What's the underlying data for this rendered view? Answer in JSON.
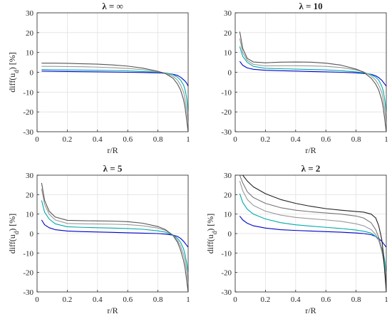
{
  "chart_data": [
    {
      "type": "line",
      "title": "λ = ∞",
      "xlabel": "r/R",
      "ylabel": "diff(u_d) [%]",
      "xlim": [
        0,
        1
      ],
      "ylim": [
        -30,
        30
      ],
      "xticks": [
        "0",
        "0.2",
        "0.4",
        "0.6",
        "0.8",
        "1"
      ],
      "yticks": [
        "30",
        "20",
        "10",
        "0",
        "-10",
        "-20",
        "-30"
      ],
      "grid": true,
      "series": [
        {
          "color": "#0000cc",
          "x": [
            0.03,
            0.1,
            0.2,
            0.3,
            0.4,
            0.5,
            0.6,
            0.7,
            0.8,
            0.85,
            0.9,
            0.93,
            0.95,
            0.97,
            0.98,
            0.99,
            1.0
          ],
          "y": [
            0.6,
            0.5,
            0.4,
            0.3,
            0.2,
            0.1,
            0.0,
            -0.1,
            -0.3,
            -0.5,
            -1.0,
            -1.6,
            -2.5,
            -3.8,
            -4.5,
            -5.5,
            -7
          ]
        },
        {
          "color": "#00aaaa",
          "x": [
            0.03,
            0.1,
            0.2,
            0.3,
            0.4,
            0.5,
            0.6,
            0.7,
            0.8,
            0.85,
            0.9,
            0.93,
            0.95,
            0.97,
            0.98,
            0.99,
            1.0
          ],
          "y": [
            1.4,
            1.3,
            1.2,
            1.1,
            1.0,
            0.9,
            0.7,
            0.4,
            0.0,
            -0.4,
            -1.2,
            -2.5,
            -4,
            -6.5,
            -9,
            -13,
            -20
          ]
        },
        {
          "color": "#999999",
          "x": [
            0.03,
            0.1,
            0.2,
            0.3,
            0.4,
            0.5,
            0.6,
            0.7,
            0.8,
            0.85,
            0.9,
            0.93,
            0.95,
            0.97,
            0.98,
            0.99,
            1.0
          ],
          "y": [
            3.0,
            3.0,
            2.9,
            2.8,
            2.6,
            2.3,
            1.9,
            1.3,
            0.2,
            -0.5,
            -2,
            -4,
            -6.5,
            -10,
            -14,
            -19,
            -25
          ]
        },
        {
          "color": "#555555",
          "x": [
            0.03,
            0.1,
            0.2,
            0.3,
            0.4,
            0.5,
            0.6,
            0.7,
            0.8,
            0.85,
            0.9,
            0.93,
            0.95,
            0.97,
            0.98,
            0.99,
            1.0
          ],
          "y": [
            4.6,
            4.6,
            4.5,
            4.3,
            4.1,
            3.7,
            3.1,
            2.1,
            0.5,
            -0.7,
            -3,
            -6,
            -9,
            -14,
            -18,
            -24,
            -30
          ]
        }
      ]
    },
    {
      "type": "line",
      "title": "λ = 10",
      "xlabel": "r/R",
      "ylabel": "",
      "xlim": [
        0,
        1
      ],
      "ylim": [
        -30,
        30
      ],
      "xticks": [
        "0",
        "0.2",
        "0.4",
        "0.6",
        "0.8",
        "1"
      ],
      "yticks": [
        "30",
        "20",
        "10",
        "0",
        "-10",
        "-20",
        "-30"
      ],
      "grid": true,
      "series": [
        {
          "color": "#0000cc",
          "x": [
            0.03,
            0.05,
            0.08,
            0.12,
            0.2,
            0.3,
            0.4,
            0.5,
            0.6,
            0.7,
            0.8,
            0.85,
            0.9,
            0.93,
            0.95,
            0.97,
            0.98,
            0.99,
            1.0
          ],
          "y": [
            5.5,
            3.5,
            2.2,
            1.5,
            1.0,
            0.8,
            0.6,
            0.4,
            0.2,
            0.0,
            -0.3,
            -0.6,
            -1.0,
            -1.8,
            -2.7,
            -4,
            -5,
            -6,
            -7
          ]
        },
        {
          "color": "#00aaaa",
          "x": [
            0.03,
            0.05,
            0.08,
            0.12,
            0.2,
            0.3,
            0.4,
            0.5,
            0.6,
            0.7,
            0.8,
            0.85,
            0.9,
            0.93,
            0.95,
            0.97,
            0.98,
            0.99,
            1.0
          ],
          "y": [
            13,
            8,
            5,
            3,
            2.0,
            1.8,
            1.6,
            1.4,
            1.2,
            0.8,
            0.2,
            -0.3,
            -1.2,
            -2.5,
            -4,
            -7,
            -9.5,
            -14,
            -20
          ]
        },
        {
          "color": "#999999",
          "x": [
            0.03,
            0.05,
            0.08,
            0.12,
            0.2,
            0.3,
            0.4,
            0.5,
            0.6,
            0.7,
            0.8,
            0.85,
            0.9,
            0.93,
            0.95,
            0.97,
            0.98,
            0.99,
            1.0
          ],
          "y": [
            17,
            10,
            6,
            4,
            3.2,
            3.3,
            3.3,
            3.2,
            3.0,
            2.4,
            1.2,
            0.2,
            -1.8,
            -4,
            -6.5,
            -10,
            -14,
            -19,
            -25
          ]
        },
        {
          "color": "#555555",
          "x": [
            0.03,
            0.05,
            0.08,
            0.12,
            0.2,
            0.3,
            0.4,
            0.5,
            0.6,
            0.7,
            0.8,
            0.85,
            0.9,
            0.93,
            0.95,
            0.97,
            0.98,
            0.99,
            1.0
          ],
          "y": [
            20.5,
            12,
            7,
            5.2,
            4.8,
            5.1,
            5.2,
            5.1,
            4.6,
            3.6,
            1.6,
            0.0,
            -3,
            -6,
            -9,
            -14,
            -18,
            -24,
            -30
          ]
        }
      ]
    },
    {
      "type": "line",
      "title": "λ = 5",
      "xlabel": "r/R",
      "ylabel": "diff(u_d) [%]",
      "xlim": [
        0,
        1
      ],
      "ylim": [
        -30,
        30
      ],
      "xticks": [
        "0",
        "0.2",
        "0.4",
        "0.6",
        "0.8",
        "1"
      ],
      "yticks": [
        "30",
        "20",
        "10",
        "0",
        "-10",
        "-20",
        "-30"
      ],
      "grid": true,
      "series": [
        {
          "color": "#0000cc",
          "x": [
            0.03,
            0.05,
            0.08,
            0.12,
            0.2,
            0.3,
            0.4,
            0.5,
            0.6,
            0.7,
            0.8,
            0.85,
            0.9,
            0.93,
            0.95,
            0.97,
            0.98,
            0.99,
            1.0
          ],
          "y": [
            7,
            4.5,
            3.0,
            2.0,
            1.3,
            1.0,
            0.8,
            0.6,
            0.4,
            0.2,
            0.0,
            -0.3,
            -0.8,
            -1.5,
            -2.5,
            -4,
            -5,
            -6,
            -7
          ]
        },
        {
          "color": "#00aaaa",
          "x": [
            0.03,
            0.05,
            0.08,
            0.12,
            0.2,
            0.3,
            0.4,
            0.5,
            0.6,
            0.7,
            0.8,
            0.85,
            0.9,
            0.93,
            0.95,
            0.97,
            0.98,
            0.99,
            1.0
          ],
          "y": [
            17,
            11,
            7.5,
            5,
            3.5,
            3.2,
            3.0,
            2.8,
            2.6,
            2.2,
            1.4,
            0.7,
            -0.8,
            -2.5,
            -4.5,
            -8,
            -11,
            -15,
            -20
          ]
        },
        {
          "color": "#999999",
          "x": [
            0.03,
            0.05,
            0.08,
            0.12,
            0.2,
            0.3,
            0.4,
            0.5,
            0.6,
            0.7,
            0.8,
            0.85,
            0.9,
            0.93,
            0.95,
            0.97,
            0.98,
            0.99,
            1.0
          ],
          "y": [
            23,
            15,
            10,
            7,
            5.2,
            5.0,
            4.9,
            4.8,
            4.6,
            4.0,
            2.8,
            1.6,
            -0.8,
            -3.5,
            -6.5,
            -11,
            -14,
            -19,
            -25
          ]
        },
        {
          "color": "#555555",
          "x": [
            0.03,
            0.05,
            0.08,
            0.12,
            0.2,
            0.3,
            0.4,
            0.5,
            0.6,
            0.7,
            0.8,
            0.85,
            0.9,
            0.93,
            0.95,
            0.97,
            0.98,
            0.99,
            1.0
          ],
          "y": [
            26,
            17,
            11.5,
            8.5,
            6.8,
            6.6,
            6.5,
            6.4,
            6.1,
            5.3,
            3.6,
            2.0,
            -1.0,
            -4.5,
            -8.5,
            -14,
            -18,
            -24,
            -30
          ]
        }
      ]
    },
    {
      "type": "line",
      "title": "λ = 2",
      "xlabel": "r/R",
      "ylabel": "diff(u_d) [%]",
      "xlim": [
        0,
        1
      ],
      "ylim": [
        -30,
        30
      ],
      "xticks": [
        "0",
        "0.2",
        "0.4",
        "0.6",
        "0.8",
        "1"
      ],
      "yticks": [
        "30",
        "20",
        "10",
        "0",
        "-10",
        "-20",
        "-30"
      ],
      "grid": true,
      "series": [
        {
          "color": "#0000cc",
          "x": [
            0.03,
            0.05,
            0.08,
            0.12,
            0.2,
            0.3,
            0.4,
            0.5,
            0.6,
            0.7,
            0.8,
            0.85,
            0.9,
            0.93,
            0.95,
            0.97,
            0.98,
            0.99,
            1.0
          ],
          "y": [
            9,
            7,
            5.3,
            4.0,
            2.8,
            2.0,
            1.6,
            1.3,
            1.0,
            0.7,
            0.3,
            0.0,
            -0.6,
            -1.5,
            -2.5,
            -4,
            -5,
            -6,
            -7
          ]
        },
        {
          "color": "#00aaaa",
          "x": [
            0.03,
            0.05,
            0.08,
            0.12,
            0.2,
            0.3,
            0.4,
            0.5,
            0.6,
            0.7,
            0.8,
            0.85,
            0.9,
            0.93,
            0.95,
            0.97,
            0.98,
            0.99,
            1.0
          ],
          "y": [
            20.5,
            16,
            12.5,
            10,
            7.5,
            5.6,
            4.5,
            3.8,
            3.2,
            2.6,
            1.8,
            1.2,
            0.2,
            -1.5,
            -3.5,
            -7.5,
            -10,
            -14,
            -20
          ]
        },
        {
          "color": "#999999",
          "x": [
            0.03,
            0.05,
            0.08,
            0.12,
            0.2,
            0.3,
            0.4,
            0.5,
            0.6,
            0.7,
            0.8,
            0.85,
            0.9,
            0.93,
            0.95,
            0.97,
            0.98,
            0.99,
            1.0
          ],
          "y": [
            27,
            22,
            17.5,
            14.5,
            11.5,
            9.5,
            8.3,
            7.6,
            7.0,
            6.3,
            5.0,
            4.0,
            2.0,
            -0.5,
            -3.5,
            -9,
            -13,
            -18.5,
            -25
          ]
        },
        {
          "color": "#777777",
          "x": [
            0.03,
            0.05,
            0.08,
            0.12,
            0.2,
            0.3,
            0.4,
            0.5,
            0.6,
            0.7,
            0.8,
            0.85,
            0.9,
            0.93,
            0.95,
            0.97,
            0.98,
            0.99,
            1.0
          ],
          "y": [
            30,
            26,
            21.5,
            18.5,
            15.5,
            13.3,
            12.0,
            11.2,
            10.6,
            10.0,
            9.0,
            8.0,
            5.5,
            2.0,
            -2,
            -8,
            -12,
            -18,
            -25
          ]
        },
        {
          "color": "#222222",
          "x": [
            0.03,
            0.05,
            0.08,
            0.12,
            0.2,
            0.3,
            0.4,
            0.5,
            0.6,
            0.7,
            0.8,
            0.85,
            0.9,
            0.93,
            0.95,
            0.97,
            0.98,
            0.99,
            1.0
          ],
          "y": [
            30,
            30,
            27,
            24,
            20.5,
            17.5,
            15.5,
            14,
            12.8,
            12.0,
            11.3,
            11.0,
            10.0,
            8.0,
            4.0,
            -3,
            -10,
            -20,
            -30
          ]
        }
      ]
    }
  ]
}
